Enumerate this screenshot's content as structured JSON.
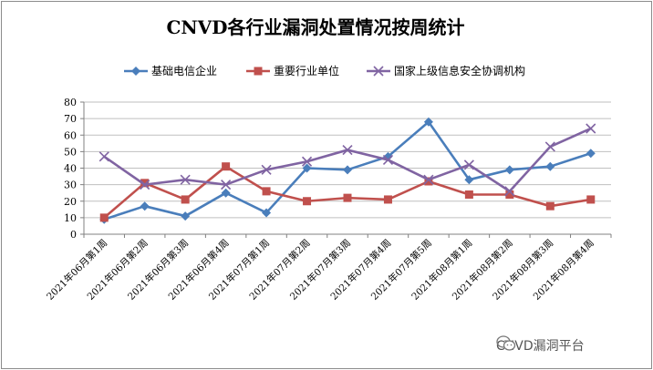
{
  "chart_data": {
    "type": "line",
    "title": "CNVD各行业漏洞处置情况按周统计",
    "categories": [
      "2021年06月第1周",
      "2021年06月第2周",
      "2021年06月第3周",
      "2021年06月第4周",
      "2021年07月第1周",
      "2021年07月第2周",
      "2021年07月第3周",
      "2021年07月第4周",
      "2021年07月第5周",
      "2021年08月第1周",
      "2021年08月第2周",
      "2021年08月第3周",
      "2021年08月第4周"
    ],
    "series": [
      {
        "name": "基础电信企业",
        "color": "#4a7ebb",
        "marker": "diamond",
        "values": [
          9,
          17,
          11,
          25,
          13,
          40,
          39,
          47,
          68,
          33,
          39,
          41,
          49
        ]
      },
      {
        "name": "重要行业单位",
        "color": "#c0504d",
        "marker": "square",
        "values": [
          10,
          31,
          21,
          41,
          26,
          20,
          22,
          21,
          32,
          24,
          24,
          17,
          21
        ]
      },
      {
        "name": "国家上级信息安全协调机构",
        "color": "#8064a2",
        "marker": "x",
        "values": [
          47,
          30,
          33,
          30,
          39,
          44,
          51,
          45,
          33,
          42,
          26,
          53,
          64
        ]
      }
    ],
    "ylim": [
      0,
      80
    ],
    "yticks": [
      0,
      10,
      20,
      30,
      40,
      50,
      60,
      70,
      80
    ],
    "grid": true,
    "legend_position": "top-center"
  },
  "watermark": {
    "text": "CNVD漏洞平台",
    "icon": "wechat-icon"
  }
}
